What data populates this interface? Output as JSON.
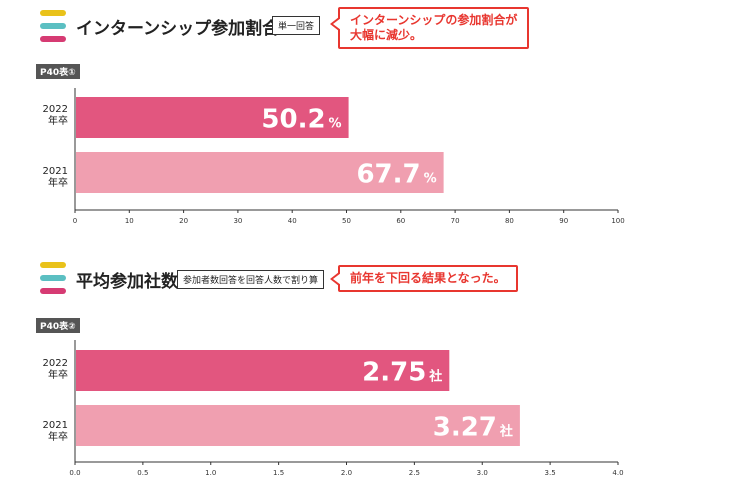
{
  "colors": {
    "yellow": "#e9c21a",
    "teal": "#5bbfc2",
    "pink": "#d63b73",
    "bar2022": "#e2567f",
    "bar2021": "#f09fb0",
    "callout": "#e8362f"
  },
  "section1": {
    "title": "インターンシップ参加割合",
    "tag": "単一回答",
    "callout_line1": "インターンシップの参加割合が",
    "callout_line2": "大幅に減少。",
    "ref": "P40表①"
  },
  "section2": {
    "title": "平均参加社数",
    "tag": "参加者数回答を回答人数で割り算",
    "callout_line1": "前年を下回る結果となった。",
    "ref": "P40表②"
  },
  "chart_data": [
    {
      "type": "bar",
      "orientation": "horizontal",
      "categories": [
        {
          "year": "2022",
          "sub": "年卒"
        },
        {
          "year": "2021",
          "sub": "年卒"
        }
      ],
      "values": [
        50.2,
        67.7
      ],
      "unit": "%",
      "xlim": [
        0,
        100
      ],
      "ticks": [
        "0",
        "10",
        "20",
        "30",
        "40",
        "50",
        "60",
        "70",
        "80",
        "90",
        "100"
      ],
      "tick_values": [
        0,
        10,
        20,
        30,
        40,
        50,
        60,
        70,
        80,
        90,
        100
      ]
    },
    {
      "type": "bar",
      "orientation": "horizontal",
      "categories": [
        {
          "year": "2022",
          "sub": "年卒"
        },
        {
          "year": "2021",
          "sub": "年卒"
        }
      ],
      "values": [
        2.75,
        3.27
      ],
      "unit": "社",
      "xlim": [
        0,
        4.0
      ],
      "ticks": [
        "0.0",
        "0.5",
        "1.0",
        "1.5",
        "2.0",
        "2.5",
        "3.0",
        "3.5",
        "4.0"
      ],
      "tick_values": [
        0,
        0.5,
        1.0,
        1.5,
        2.0,
        2.5,
        3.0,
        3.5,
        4.0
      ]
    }
  ]
}
